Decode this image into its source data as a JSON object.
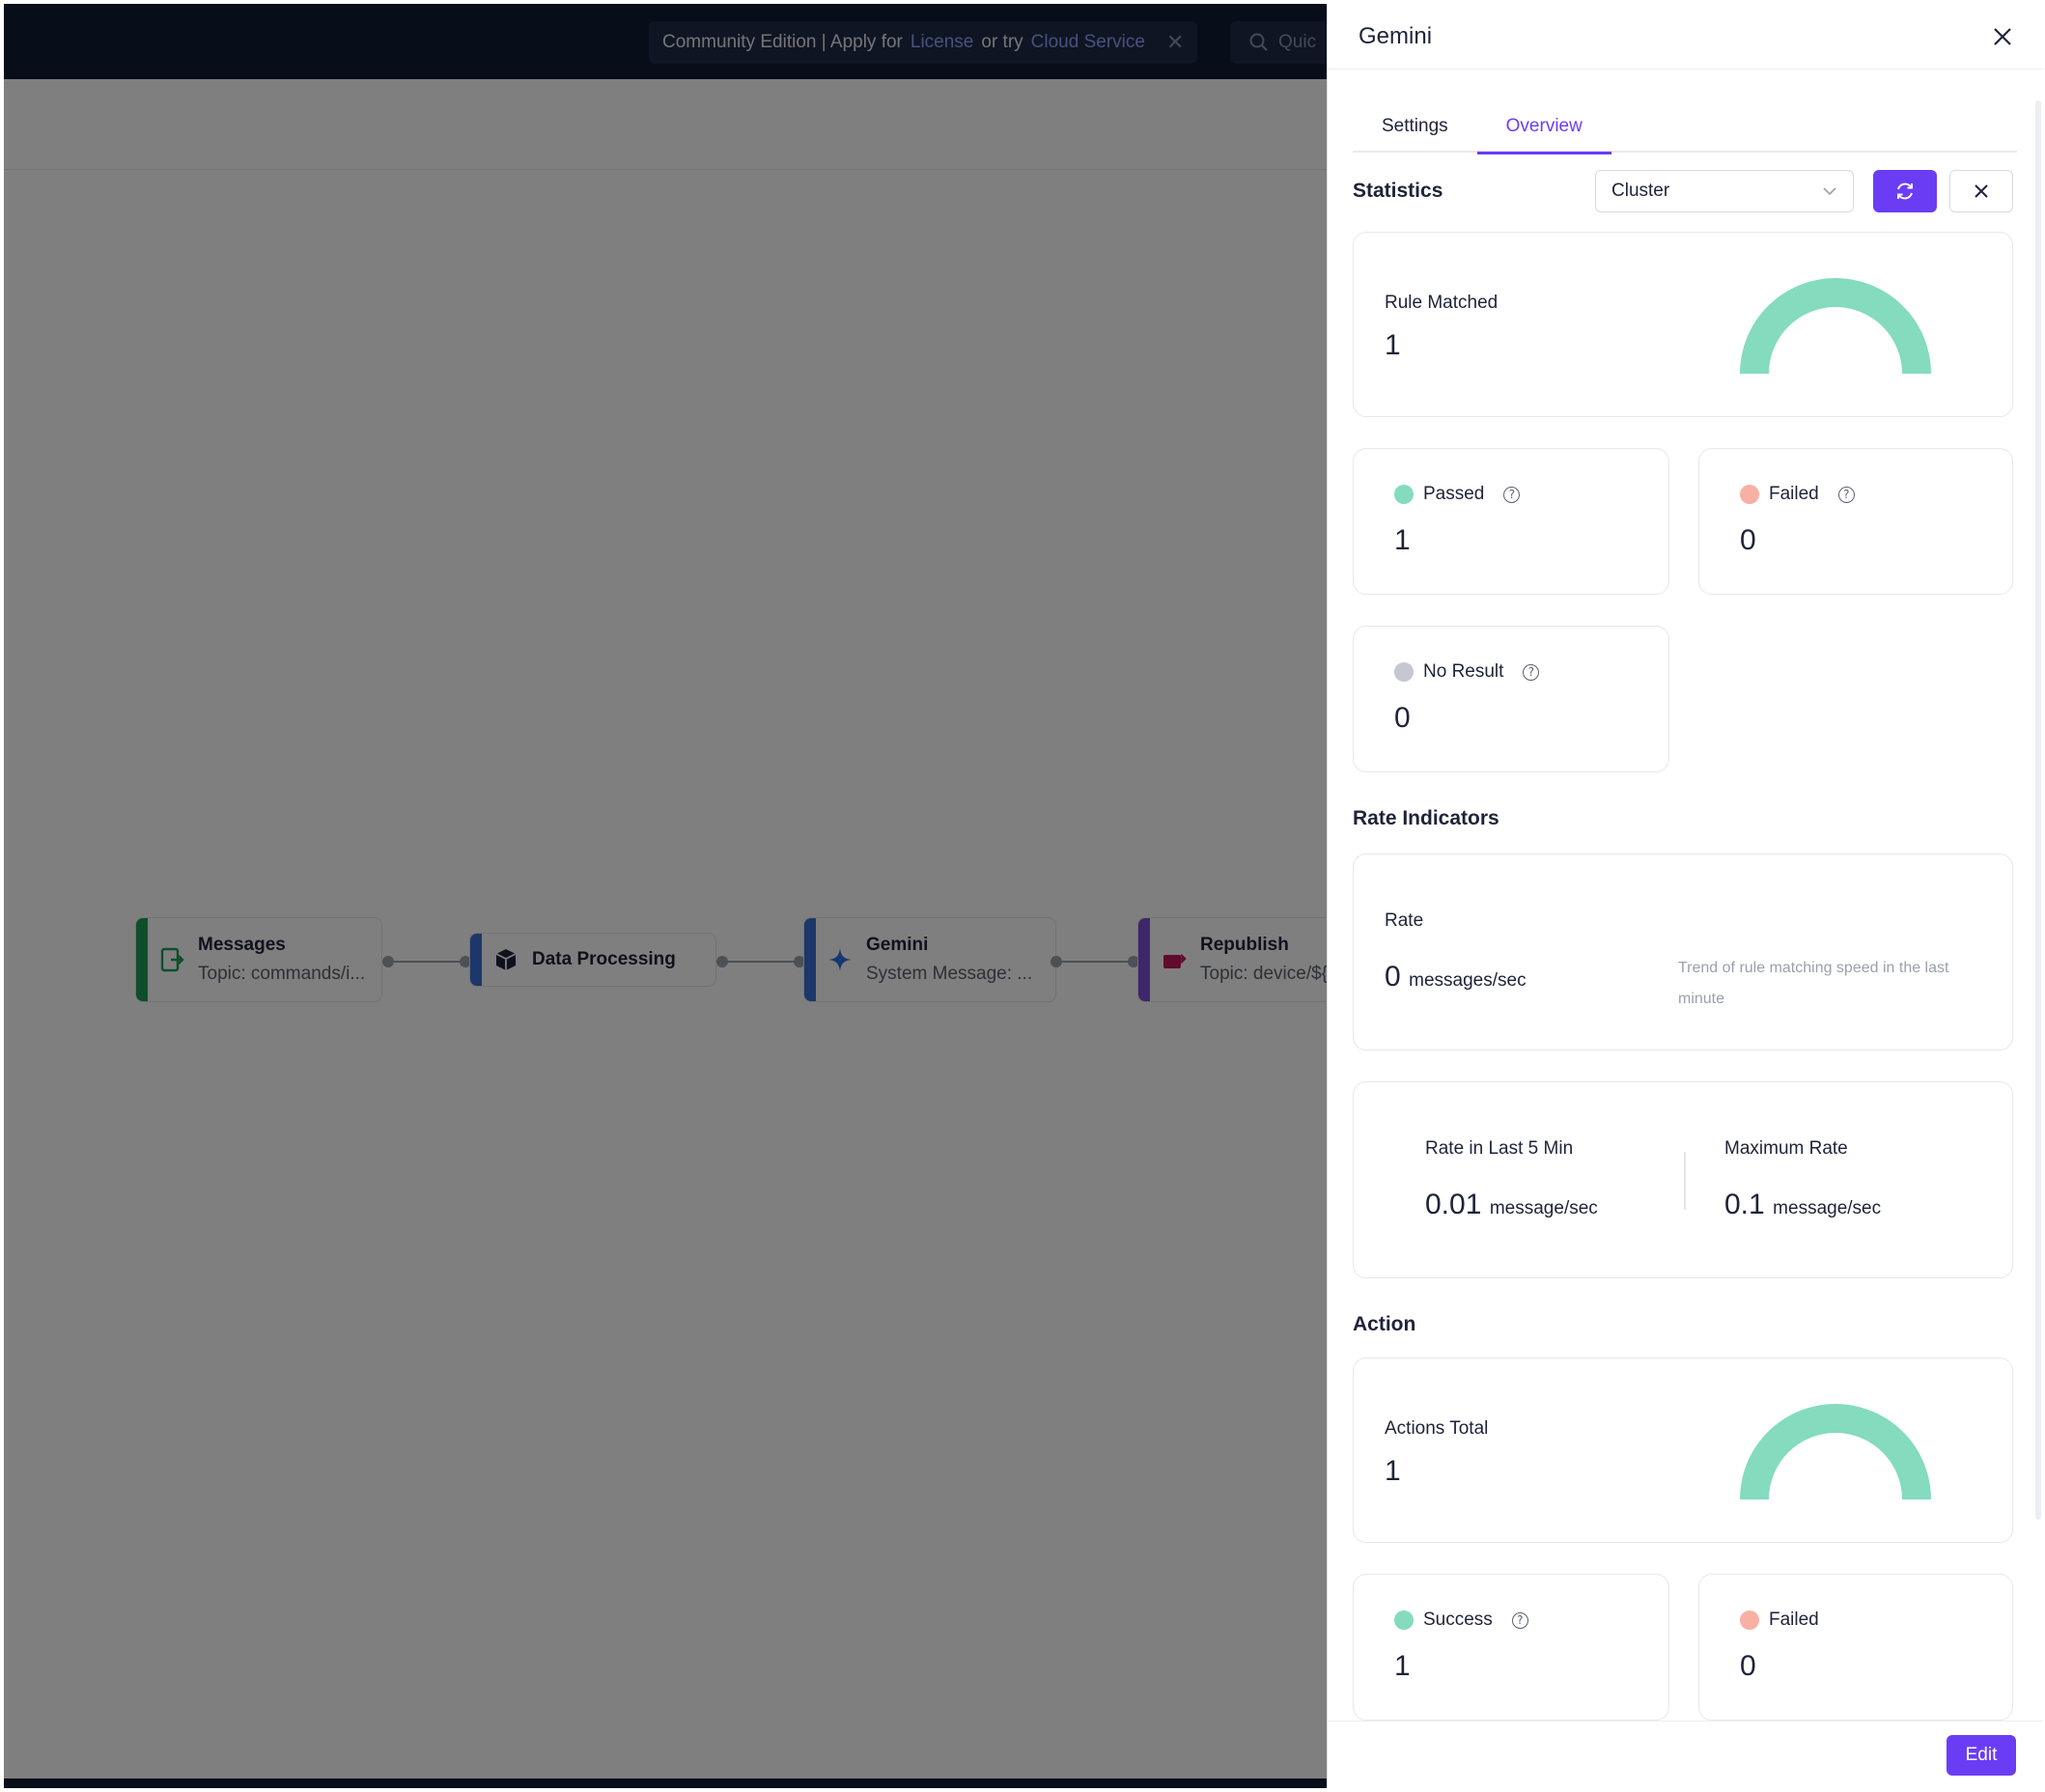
{
  "topbar": {
    "notice_prefix": "Community Edition | Apply for",
    "notice_link1": "License",
    "notice_middle": "or try",
    "notice_link2": "Cloud Service",
    "quick_search_placeholder": "Quic"
  },
  "flow": {
    "nodes": [
      {
        "title": "Messages",
        "subtitle": "Topic: commands/i...",
        "color": "#1f9d55"
      },
      {
        "title": "Data Processing",
        "subtitle": "",
        "color": "#3b6fd4"
      },
      {
        "title": "Gemini",
        "subtitle": "System Message: ...",
        "color": "#3b6fd4"
      },
      {
        "title": "Republish",
        "subtitle": "Topic: device/${",
        "color": "#7b4fd4"
      }
    ]
  },
  "drawer": {
    "title": "Gemini",
    "tabs": [
      {
        "label": "Settings",
        "active": false
      },
      {
        "label": "Overview",
        "active": true
      }
    ],
    "statistics": {
      "title": "Statistics",
      "node_select": "Cluster",
      "rule_matched": {
        "label": "Rule Matched",
        "value": "1",
        "fill": 1.0
      },
      "passed": {
        "label": "Passed",
        "value": "1",
        "color": "#84dbbd"
      },
      "failed": {
        "label": "Failed",
        "value": "0",
        "color": "#f7b0a3"
      },
      "no_result": {
        "label": "No Result",
        "value": "0",
        "color": "#c5c8d2"
      }
    },
    "rate_indicators": {
      "title": "Rate Indicators",
      "rate_label": "Rate",
      "rate_value": "0",
      "rate_unit": "messages/sec",
      "trend_text": "Trend of rule matching speed in the last minute",
      "last5_label": "Rate in Last 5 Min",
      "last5_value": "0.01",
      "last5_unit": "message/sec",
      "max_label": "Maximum Rate",
      "max_value": "0.1",
      "max_unit": "message/sec"
    },
    "action": {
      "title": "Action",
      "actions_total": {
        "label": "Actions Total",
        "value": "1",
        "fill": 1.0
      },
      "success": {
        "label": "Success",
        "value": "1",
        "color": "#84dbbd"
      },
      "failed": {
        "label": "Failed",
        "value": "0",
        "color": "#f7b0a3"
      }
    },
    "edit_label": "Edit"
  },
  "colors": {
    "accent": "#6a3df5",
    "gauge": "#84dbbd",
    "navy": "#0e1a33"
  }
}
